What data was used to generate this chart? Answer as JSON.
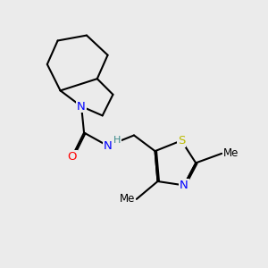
{
  "background_color": "#ebebeb",
  "atom_colors": {
    "C": "#000000",
    "N": "#0000ff",
    "O": "#ff0000",
    "S": "#bbbb00",
    "H": "#3a8a8a"
  },
  "bond_color": "#000000",
  "bond_width": 1.5,
  "font_size_atoms": 9.5,
  "font_size_methyl": 8.5
}
